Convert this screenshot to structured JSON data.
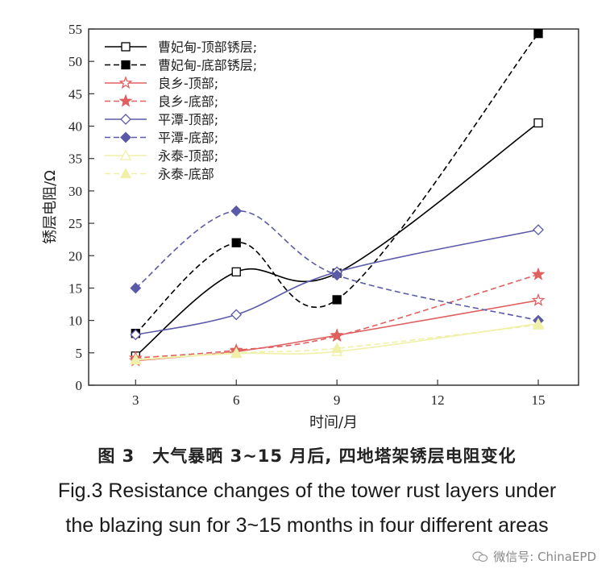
{
  "chart_data": {
    "type": "line",
    "title": "",
    "xlabel": "时间/月",
    "ylabel": "锈层电阻/Ω",
    "xlim": [
      1.6,
      16.2
    ],
    "ylim": [
      0,
      55
    ],
    "xticks": [
      3,
      6,
      9,
      12,
      15
    ],
    "yticks": [
      0,
      5,
      10,
      15,
      20,
      25,
      30,
      35,
      40,
      45,
      50,
      55
    ],
    "x": [
      3,
      6,
      9,
      15
    ],
    "series": [
      {
        "name": "曹妃甸-顶部锈层;",
        "values": [
          4.5,
          17.5,
          17.3,
          40.5
        ],
        "color": "#000000",
        "dashed": false,
        "marker": "square-open"
      },
      {
        "name": "曹妃甸-底部锈层;",
        "values": [
          8.0,
          22.0,
          13.2,
          54.3
        ],
        "color": "#000000",
        "dashed": true,
        "marker": "square-filled"
      },
      {
        "name": "良乡-顶部;",
        "values": [
          3.8,
          5.2,
          7.7,
          13.1
        ],
        "color": "#e06060",
        "dashed": false,
        "marker": "star-open"
      },
      {
        "name": "良乡-底部;",
        "values": [
          4.2,
          5.4,
          7.6,
          17.1
        ],
        "color": "#e06060",
        "dashed": true,
        "marker": "star-filled"
      },
      {
        "name": "平潭-顶部;",
        "values": [
          7.8,
          10.9,
          17.5,
          24.0
        ],
        "color": "#5a5aa8",
        "dashed": false,
        "marker": "diamond-open"
      },
      {
        "name": "平潭-底部;",
        "values": [
          15.0,
          26.9,
          17.0,
          10.0
        ],
        "color": "#5a5aa8",
        "dashed": true,
        "marker": "diamond-filled"
      },
      {
        "name": "永泰-顶部;",
        "values": [
          3.9,
          4.9,
          5.2,
          9.5
        ],
        "color": "#f0f0a8",
        "dashed": false,
        "marker": "triangle-open"
      },
      {
        "name": "永泰-底部",
        "values": [
          4.0,
          5.0,
          5.7,
          9.3
        ],
        "color": "#f0f0a8",
        "dashed": true,
        "marker": "triangle-filled"
      }
    ],
    "legend": "top-left"
  },
  "caption": {
    "chinese": "图 3　大气暴晒 3~15 月后, 四地塔架锈层电阻变化",
    "english_line1": "Fig.3   Resistance changes of the tower rust layers under",
    "english_line2": "the blazing sun for 3~15 months in four different areas"
  },
  "watermark": {
    "icon": "wechat-icon",
    "text": "微信号: ChinaEPD"
  }
}
